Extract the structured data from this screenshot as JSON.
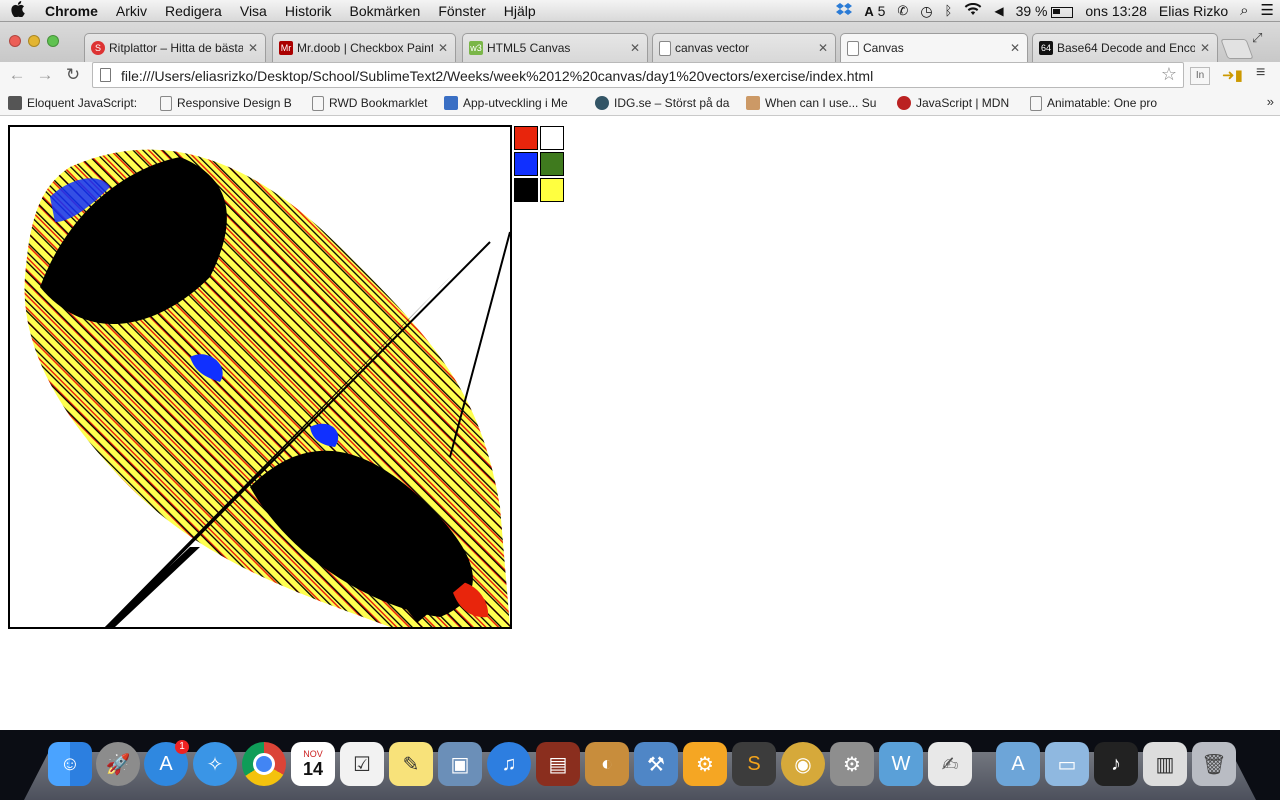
{
  "menubar": {
    "apple": "",
    "app_name": "Chrome",
    "menus": [
      "Arkiv",
      "Redigera",
      "Visa",
      "Historik",
      "Bokmärken",
      "Fönster",
      "Hjälp"
    ],
    "adobe_count": "5",
    "battery": "39 %",
    "clock": "ons 13:28",
    "user": "Elias Rizko"
  },
  "tabs": [
    {
      "title": "Ritplattor – Hitta de bästa",
      "favicon_color": "#d33",
      "favicon_text": "S"
    },
    {
      "title": "Mr.doob | Checkbox Paint",
      "favicon_color": "#a00",
      "favicon_text": "Mr"
    },
    {
      "title": "HTML5 Canvas",
      "favicon_color": "#7ab648",
      "favicon_text": "w3"
    },
    {
      "title": "canvas vector",
      "favicon_color": "",
      "favicon_text": ""
    },
    {
      "title": "Canvas",
      "favicon_color": "",
      "favicon_text": "",
      "active": true
    },
    {
      "title": "Base64 Decode and Encode",
      "favicon_color": "#111",
      "favicon_text": "64"
    }
  ],
  "toolbar": {
    "url": "file:///Users/eliasrizko/Desktop/School/SublimeText2/Weeks/week%2012%20canvas/day1%20vectors/exercise/index.html",
    "ext_label": "In"
  },
  "bookmarks": [
    {
      "label": "Eloquent JavaScript:",
      "color": "#555"
    },
    {
      "label": "Responsive Design B",
      "color": "#fff"
    },
    {
      "label": "RWD Bookmarklet",
      "color": "#fff"
    },
    {
      "label": "App-utveckling i Me",
      "color": "#3a6fc4"
    },
    {
      "label": "IDG.se – Störst på da",
      "color": "#356"
    },
    {
      "label": "When can I use... Su",
      "color": "#c96"
    },
    {
      "label": "JavaScript | MDN",
      "color": "#b22"
    },
    {
      "label": "Animatable: One pro",
      "color": "#fff"
    }
  ],
  "palette": {
    "colors": [
      "#e8250c",
      "#ffffff",
      "#1030ff",
      "#3f7a1e",
      "#000000",
      "#ffff40"
    ]
  },
  "dock": {
    "app_store_badge": "1",
    "calendar_month": "NOV",
    "calendar_day": "14"
  }
}
